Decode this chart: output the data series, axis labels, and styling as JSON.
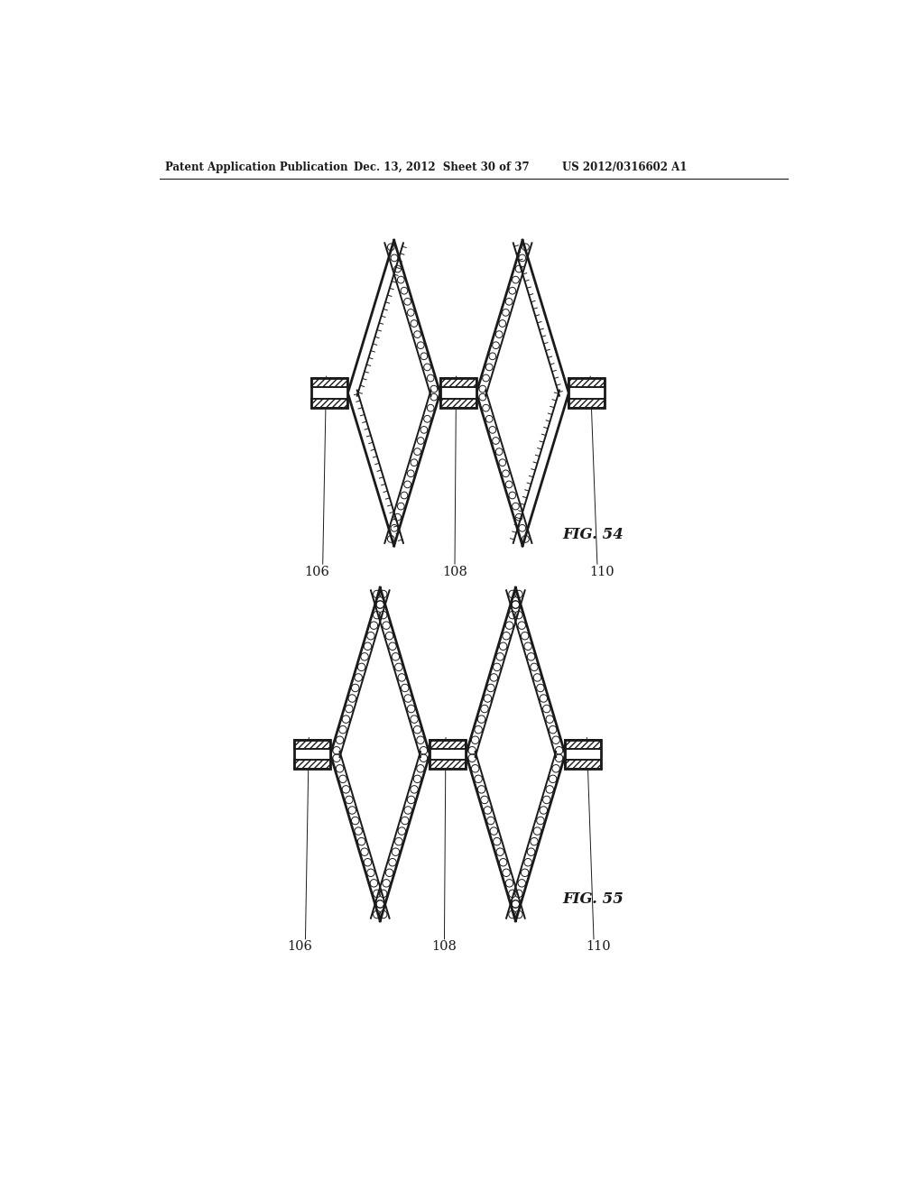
{
  "header_left": "Patent Application Publication",
  "header_center": "Dec. 13, 2012  Sheet 30 of 37",
  "header_right": "US 2012/0316602 A1",
  "fig54_label": "FIG. 54",
  "fig55_label": "FIG. 55",
  "label_106": "106",
  "label_108": "108",
  "label_110": "110",
  "bg_color": "#ffffff",
  "line_color": "#1a1a1a"
}
